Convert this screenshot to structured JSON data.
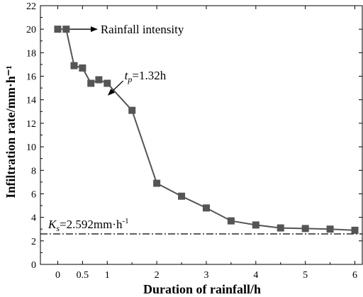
{
  "chart_data": {
    "type": "line",
    "title": "",
    "xlabel": "Duration of rainfall/h",
    "ylabel": "Infiltration rate/mm·h⁻¹",
    "xlim": [
      -0.35,
      6.15
    ],
    "ylim": [
      0,
      22
    ],
    "x_ticks": [
      0,
      0.5,
      1,
      2,
      3,
      4,
      5,
      6
    ],
    "x_tick_labels": [
      "0",
      "0.5",
      "1",
      "2",
      "3",
      "4",
      "5",
      "6"
    ],
    "y_ticks": [
      0,
      2,
      4,
      6,
      8,
      10,
      12,
      14,
      16,
      18,
      20,
      22
    ],
    "grid": false,
    "series": [
      {
        "x": [
          0,
          0.17,
          0.33,
          0.5,
          0.67,
          0.83,
          1.0,
          1.5,
          2.0,
          2.5,
          3.0,
          3.5,
          4.0,
          4.5,
          5.0,
          5.5,
          6.0
        ],
        "y": [
          20.0,
          20.0,
          16.9,
          16.7,
          15.4,
          15.7,
          15.4,
          13.1,
          6.9,
          5.8,
          4.8,
          3.7,
          3.35,
          3.1,
          3.05,
          3.0,
          2.9
        ],
        "color": "#555555",
        "marker": "square"
      }
    ],
    "reference_line": {
      "y": 2.592,
      "style": "dash-dot",
      "label_main": "K",
      "label_sub": "s",
      "label_value": "=2.592mm·h",
      "label_sup": "-1"
    },
    "annotations": [
      {
        "text": "Rainfall intensity",
        "arrow_from": [
          0.3,
          20
        ],
        "arrow_to": [
          0.85,
          20
        ]
      },
      {
        "main": "t",
        "sub": "p",
        "rest": "=1.32h",
        "arrow_from": [
          1.32,
          15.6
        ],
        "arrow_to": [
          1.02,
          14.4
        ]
      }
    ]
  }
}
